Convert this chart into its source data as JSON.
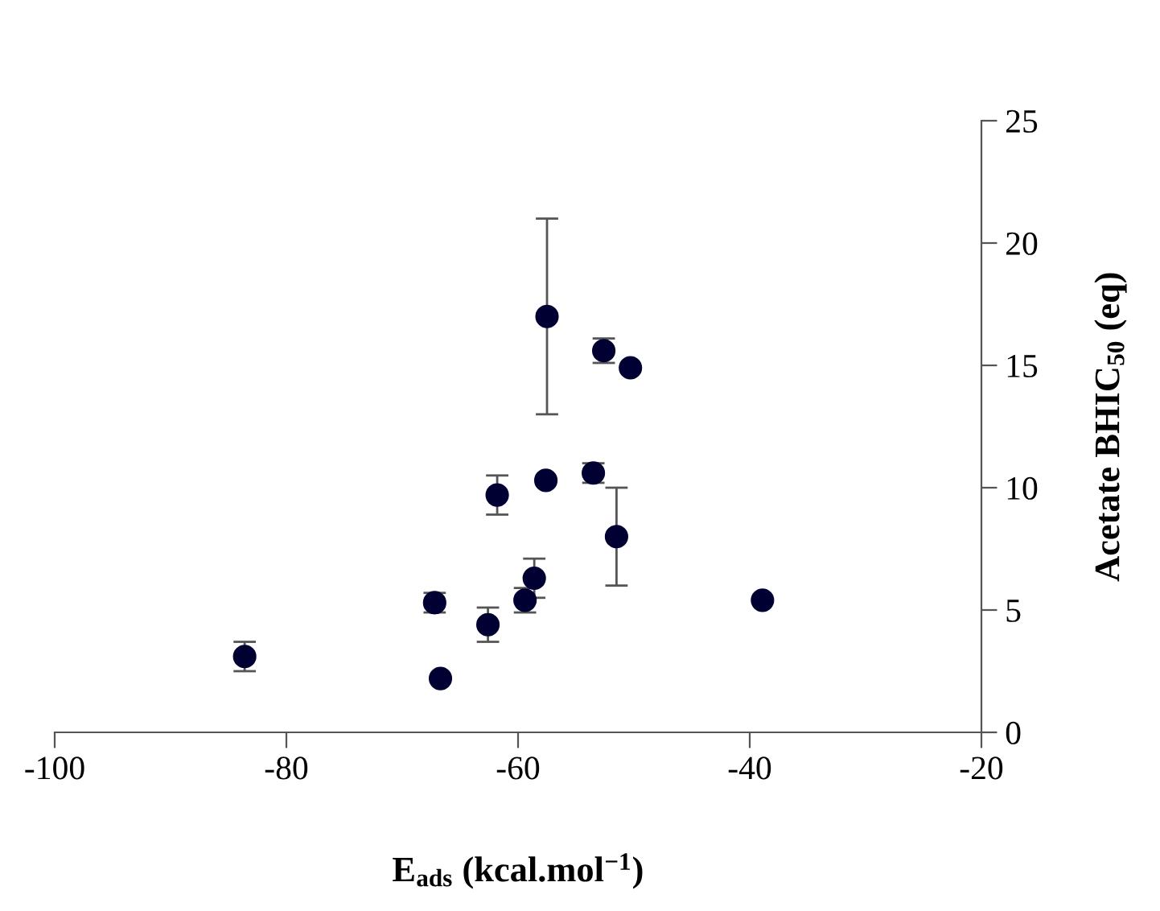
{
  "chart_data": {
    "type": "scatter",
    "xlabel": "E$_{ads}$ (kcal.mol$^{−1}$)",
    "ylabel": "Acetate BHIC$_{50}$ (eq)",
    "x": [
      -83.6,
      -67.2,
      -66.7,
      -62.6,
      -61.8,
      -59.4,
      -58.6,
      -57.5,
      -57.6,
      -53.5,
      -52.6,
      -50.3,
      -51.5,
      -38.9
    ],
    "series": [
      {
        "color": "#000033",
        "values": [
          3.1,
          5.3,
          2.2,
          4.4,
          9.7,
          5.4,
          6.3,
          17.0,
          10.3,
          10.6,
          15.6,
          14.9,
          8.0,
          5.4
        ],
        "errors": [
          0.6,
          0.4,
          null,
          0.7,
          0.8,
          0.5,
          0.8,
          4.0,
          null,
          0.4,
          0.5,
          null,
          2.0,
          null
        ]
      }
    ],
    "xlim": [
      -100,
      -20
    ],
    "xticks": [
      -100,
      -80,
      -60,
      -40,
      -20
    ],
    "ylim": [
      0,
      25
    ],
    "yticks": [
      0,
      5,
      10,
      15,
      20,
      25
    ],
    "marker": "circle",
    "grid": false,
    "legend": false
  }
}
